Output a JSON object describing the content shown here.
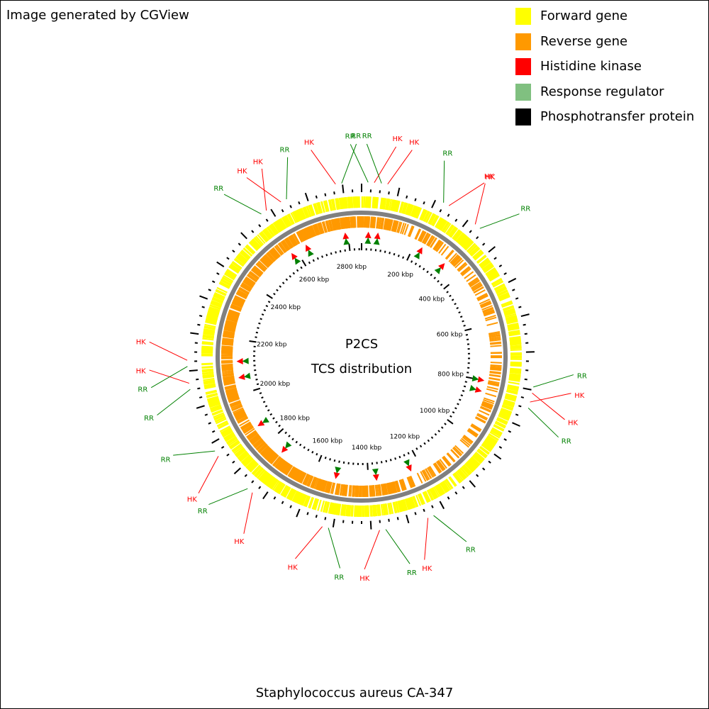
{
  "credit": "Image generated by CGView",
  "legend": [
    {
      "label": "Forward gene",
      "color": "#ffff00",
      "icon": "square-swatch"
    },
    {
      "label": "Reverse gene",
      "color": "#ff9900",
      "icon": "square-swatch"
    },
    {
      "label": "Histidine kinase",
      "color": "#ff0000",
      "icon": "square-swatch"
    },
    {
      "label": "Response regulator",
      "color": "#80c080",
      "icon": "square-swatch"
    },
    {
      "label": "Phosphotransfer protein",
      "color": "#000000",
      "icon": "square-swatch"
    }
  ],
  "center": {
    "line1": "P2CS",
    "line2": "TCS distribution"
  },
  "organism": "Staphylococcus aureus CA-347",
  "genome_length_kbp": 2850,
  "ticks": {
    "major_interval_kbp": 200,
    "labels": [
      "200 kbp",
      "400 kbp",
      "600 kbp",
      "800 kbp",
      "1000 kbp",
      "1200 kbp",
      "1400 kbp",
      "1600 kbp",
      "1800 kbp",
      "2000 kbp",
      "2200 kbp",
      "2400 kbp",
      "2600 kbp",
      "2800 kbp"
    ]
  },
  "colors": {
    "forward": "#ffff00",
    "reverse": "#ff9900",
    "hk": "#ff0000",
    "rr": "#008000",
    "backbone": "#808080"
  },
  "tcs_pairs": [
    {
      "kbp": 25,
      "labels": [
        "RR",
        "HK"
      ],
      "callout_order": [
        "RR",
        "HK"
      ]
    },
    {
      "kbp": 60,
      "labels": [
        "RR",
        "HK"
      ],
      "callout_order": [
        "RR",
        "HK"
      ]
    },
    {
      "kbp": 230,
      "labels": [
        "RR",
        "HK"
      ],
      "callout_order": [
        "RR",
        "HK"
      ]
    },
    {
      "kbp": 330,
      "labels": [
        "HK",
        "RR"
      ],
      "callout_order": [
        "HK",
        "RR"
      ]
    },
    {
      "kbp": 800,
      "labels": [
        "RR",
        "HK"
      ],
      "callout_order": [
        "RR",
        "HK"
      ]
    },
    {
      "kbp": 840,
      "labels": [
        "HK",
        "RR"
      ],
      "callout_order": [
        "HK",
        "RR"
      ]
    },
    {
      "kbp": 1240,
      "labels": [
        "RR",
        "HK"
      ],
      "callout_order": [
        "RR",
        "HK"
      ]
    },
    {
      "kbp": 1370,
      "labels": [
        "RR",
        "HK"
      ],
      "callout_order": [
        "RR",
        "HK"
      ]
    },
    {
      "kbp": 1520,
      "labels": [
        "RR",
        "HK"
      ],
      "callout_order": [
        "RR",
        "HK"
      ]
    },
    {
      "kbp": 1740,
      "labels": [
        "HK",
        "RR"
      ],
      "callout_order": [
        "HK",
        "RR"
      ]
    },
    {
      "kbp": 1870,
      "labels": [
        "HK",
        "RR"
      ],
      "callout_order": [
        "HK",
        "RR"
      ]
    },
    {
      "kbp": 2060,
      "labels": [
        "RR",
        "HK"
      ],
      "callout_order": [
        "RR",
        "HK"
      ]
    },
    {
      "kbp": 2120,
      "labels": [
        "RR",
        "HK"
      ],
      "callout_order": [
        "RR",
        "HK"
      ]
    },
    {
      "kbp": 2580,
      "labels": [
        "RR",
        "HK"
      ],
      "callout_order": [
        "RR",
        "HK"
      ]
    },
    {
      "kbp": 2640,
      "labels": [
        "HK",
        "RR"
      ],
      "callout_order": [
        "HK",
        "RR"
      ]
    },
    {
      "kbp": 2790,
      "labels": [
        "HK",
        "RR"
      ],
      "callout_order": [
        "HK",
        "RR"
      ]
    }
  ]
}
